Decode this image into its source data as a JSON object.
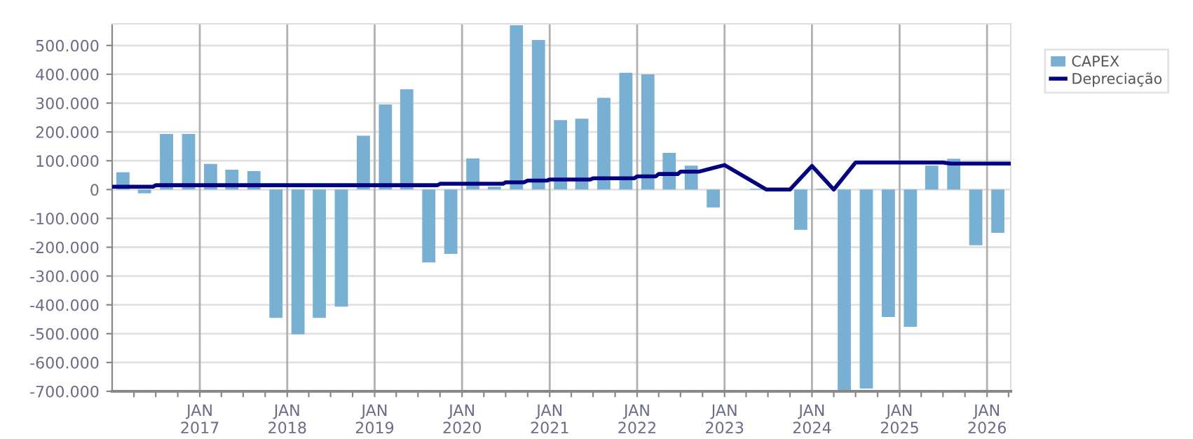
{
  "chart_data": {
    "type": "bar",
    "x": [
      "2016-02-15",
      "2016-05-15",
      "2016-08-15",
      "2016-11-15",
      "2017-02-15",
      "2017-05-15",
      "2017-08-15",
      "2017-11-15",
      "2018-02-15",
      "2018-05-15",
      "2018-08-15",
      "2018-11-15",
      "2019-02-15",
      "2019-05-15",
      "2019-08-15",
      "2019-11-15",
      "2020-02-15",
      "2020-05-15",
      "2020-08-15",
      "2020-11-15",
      "2021-02-15",
      "2021-05-15",
      "2021-08-15",
      "2021-11-15",
      "2022-02-15",
      "2022-05-15",
      "2022-08-15",
      "2022-11-15",
      "2023-02-15",
      "2023-05-15",
      "2023-08-15",
      "2023-11-15",
      "2024-02-15",
      "2024-05-15",
      "2024-08-15",
      "2024-11-15",
      "2025-02-15",
      "2025-05-15",
      "2025-08-15",
      "2025-11-15",
      "2026-02-15"
    ],
    "series": [
      {
        "name": "CAPEX",
        "color": "#78b0d3",
        "values": [
          60000,
          -13000,
          193000,
          193000,
          89000,
          69000,
          64000,
          -445000,
          -502000,
          -445000,
          -406000,
          187000,
          295000,
          348000,
          -253000,
          -223000,
          108000,
          10000,
          570000,
          519000,
          241000,
          246000,
          318000,
          405000,
          400000,
          127000,
          83000,
          -62000,
          null,
          3000,
          null,
          -140000,
          3000,
          -700000,
          -690000,
          -442000,
          -476000,
          83000,
          107000,
          -193000,
          -150000
        ]
      },
      {
        "name": "Depreciação",
        "type": "line",
        "color": "#000080",
        "x": [
          "2016-01-01",
          "2016-06-20",
          "2016-07-01",
          "2019-09-20",
          "2019-10-01",
          "2020-06-20",
          "2020-07-01",
          "2020-09-15",
          "2020-10-01",
          "2020-12-20",
          "2021-01-01",
          "2021-06-20",
          "2021-07-01",
          "2021-12-20",
          "2022-01-01",
          "2022-03-20",
          "2022-04-01",
          "2022-06-20",
          "2022-07-01",
          "2022-09-15",
          "2023-01-01",
          "2023-06-25",
          "2023-10-01",
          "2024-01-01",
          "2024-04-01",
          "2024-07-01",
          "2025-07-01",
          "2025-08-01",
          "2026-04-10"
        ],
        "values": [
          10000,
          10000,
          15000,
          15000,
          20000,
          20000,
          25000,
          25000,
          31000,
          31000,
          35000,
          35000,
          39000,
          39000,
          46000,
          46000,
          54000,
          54000,
          62000,
          62000,
          85000,
          0,
          0,
          82000,
          0,
          94000,
          94000,
          90000,
          90000
        ]
      }
    ],
    "xlim": [
      "2016-01-01",
      "2026-04-10"
    ],
    "xticks": [
      {
        "value": "2016-04-01",
        "label": null
      },
      {
        "value": "2016-07-01",
        "label": null
      },
      {
        "value": "2016-10-01",
        "label": null
      },
      {
        "value": "2017-01-01",
        "label": "JAN\n2017"
      },
      {
        "value": "2017-04-01",
        "label": null
      },
      {
        "value": "2017-07-01",
        "label": null
      },
      {
        "value": "2017-10-01",
        "label": null
      },
      {
        "value": "2018-01-01",
        "label": "JAN\n2018"
      },
      {
        "value": "2018-04-01",
        "label": null
      },
      {
        "value": "2018-07-01",
        "label": null
      },
      {
        "value": "2018-10-01",
        "label": null
      },
      {
        "value": "2019-01-01",
        "label": "JAN\n2019"
      },
      {
        "value": "2019-04-01",
        "label": null
      },
      {
        "value": "2019-07-01",
        "label": null
      },
      {
        "value": "2019-10-01",
        "label": null
      },
      {
        "value": "2020-01-01",
        "label": "JAN\n2020"
      },
      {
        "value": "2020-04-01",
        "label": null
      },
      {
        "value": "2020-07-01",
        "label": null
      },
      {
        "value": "2020-10-01",
        "label": null
      },
      {
        "value": "2021-01-01",
        "label": "JAN\n2021"
      },
      {
        "value": "2021-04-01",
        "label": null
      },
      {
        "value": "2021-07-01",
        "label": null
      },
      {
        "value": "2021-10-01",
        "label": null
      },
      {
        "value": "2022-01-01",
        "label": "JAN\n2022"
      },
      {
        "value": "2022-04-01",
        "label": null
      },
      {
        "value": "2022-07-01",
        "label": null
      },
      {
        "value": "2022-10-01",
        "label": null
      },
      {
        "value": "2023-01-01",
        "label": "JAN\n2023"
      },
      {
        "value": "2023-04-01",
        "label": null
      },
      {
        "value": "2023-07-01",
        "label": null
      },
      {
        "value": "2023-10-01",
        "label": null
      },
      {
        "value": "2024-01-01",
        "label": "JAN\n2024"
      },
      {
        "value": "2024-04-01",
        "label": null
      },
      {
        "value": "2024-07-01",
        "label": null
      },
      {
        "value": "2024-10-01",
        "label": null
      },
      {
        "value": "2025-01-01",
        "label": "JAN\n2025"
      },
      {
        "value": "2025-04-01",
        "label": null
      },
      {
        "value": "2025-07-01",
        "label": null
      },
      {
        "value": "2025-10-01",
        "label": null
      },
      {
        "value": "2026-01-01",
        "label": "JAN\n2026"
      },
      {
        "value": "2026-04-01",
        "label": null
      }
    ],
    "ylim": [
      -700000,
      575000
    ],
    "yticks": [
      {
        "value": -700000,
        "label": "-700.000"
      },
      {
        "value": -600000,
        "label": "-600.000"
      },
      {
        "value": -500000,
        "label": "-500.000"
      },
      {
        "value": -400000,
        "label": "-400.000"
      },
      {
        "value": -300000,
        "label": "-300.000"
      },
      {
        "value": -200000,
        "label": "-200.000"
      },
      {
        "value": -100000,
        "label": "-100.000"
      },
      0,
      {
        "value": 100000,
        "label": "100.000"
      },
      {
        "value": 200000,
        "label": "200.000"
      },
      {
        "value": 300000,
        "label": "300.000"
      },
      {
        "value": 400000,
        "label": "400.000"
      },
      {
        "value": 500000,
        "label": "500.000"
      }
    ],
    "grid": true,
    "legend": "top right"
  }
}
